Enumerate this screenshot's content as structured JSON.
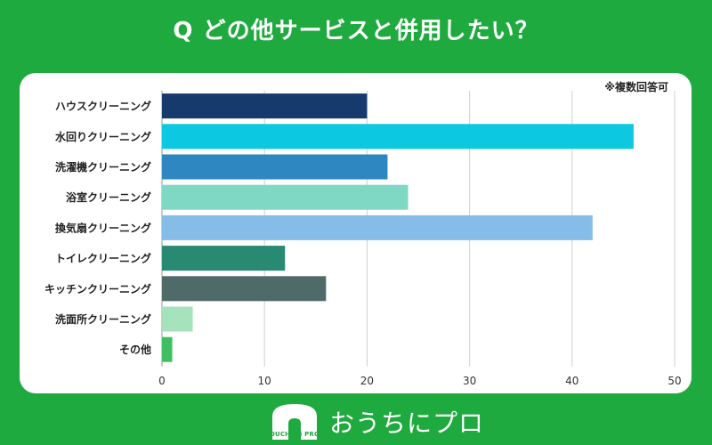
{
  "page": {
    "title": "Q どの他サービスと併用したい？",
    "note": "※複数回答可"
  },
  "brand": {
    "name": "おうちにプロ",
    "logo_text": "OUCHI ni PRO"
  },
  "chart_data": {
    "type": "bar",
    "orientation": "horizontal",
    "title": "Q どの他サービスと併用したい？",
    "xlabel": "",
    "ylabel": "",
    "xlim": [
      0,
      50
    ],
    "xticks": [
      0,
      10,
      20,
      30,
      40,
      50
    ],
    "grid": true,
    "categories": [
      "ハウスクリーニング",
      "水回りクリーニング",
      "洗濯機クリーニング",
      "浴室クリーニング",
      "換気扇クリーニング",
      "トイレクリーニング",
      "キッチンクリーニング",
      "洗面所クリーニング",
      "その他"
    ],
    "values": [
      20,
      46,
      22,
      24,
      42,
      12,
      16,
      3,
      1
    ],
    "colors": [
      "#163a6b",
      "#0cc8e0",
      "#2f87c2",
      "#7fd8c4",
      "#86bde8",
      "#288a72",
      "#4f6b69",
      "#a6e3bd",
      "#3dbf62"
    ]
  }
}
